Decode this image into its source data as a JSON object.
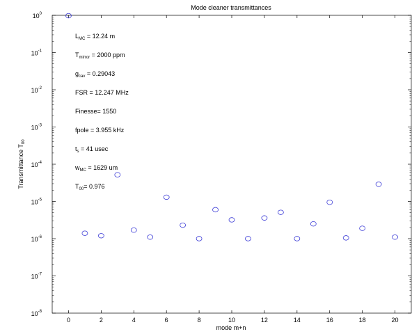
{
  "chart_data": {
    "type": "scatter",
    "title": "Mode cleaner transmittances",
    "xlabel": "mode m+n",
    "ylabel_main": "Transmittance T",
    "ylabel_sub": "00",
    "xlim": [
      -1,
      21
    ],
    "ylim": [
      1e-08,
      1
    ],
    "y_scale": "log",
    "x_ticks": [
      "0",
      "2",
      "4",
      "6",
      "8",
      "10",
      "12",
      "14",
      "16",
      "18",
      "20"
    ],
    "y_tick_exponents": [
      "-8",
      "-7",
      "-6",
      "-5",
      "-4",
      "-3",
      "-2",
      "-1",
      "0"
    ],
    "grid": false,
    "marker": "circle-open",
    "marker_color": "#3a3ad6",
    "points": [
      {
        "x": 0,
        "y": 0.976
      },
      {
        "x": 1,
        "y": 1.4e-06
      },
      {
        "x": 2,
        "y": 1.2e-06
      },
      {
        "x": 3,
        "y": 5.2e-05
      },
      {
        "x": 4,
        "y": 1.7e-06
      },
      {
        "x": 5,
        "y": 1.1e-06
      },
      {
        "x": 6,
        "y": 1.3e-05
      },
      {
        "x": 7,
        "y": 2.3e-06
      },
      {
        "x": 8,
        "y": 1e-06
      },
      {
        "x": 9,
        "y": 6e-06
      },
      {
        "x": 10,
        "y": 3.2e-06
      },
      {
        "x": 11,
        "y": 1e-06
      },
      {
        "x": 12,
        "y": 3.6e-06
      },
      {
        "x": 13,
        "y": 5.1e-06
      },
      {
        "x": 14,
        "y": 1e-06
      },
      {
        "x": 15,
        "y": 2.5e-06
      },
      {
        "x": 16,
        "y": 9.5e-06
      },
      {
        "x": 17,
        "y": 1.05e-06
      },
      {
        "x": 18,
        "y": 1.9e-06
      },
      {
        "x": 19,
        "y": 2.9e-05
      },
      {
        "x": 20,
        "y": 1.1e-06
      }
    ],
    "annotations": [
      {
        "main": "L",
        "sub": "MC",
        "value": " = 12.24 m"
      },
      {
        "main": "T",
        "sub": "mirror",
        "value": " = 2000 ppm"
      },
      {
        "main": "g",
        "sub": "cav",
        "value": "  = 0.29043"
      },
      {
        "main": "FSR",
        "sub": "",
        "value": "   = 12.247 MHz"
      },
      {
        "main": "Finesse",
        "sub": "",
        "value": "= 1550"
      },
      {
        "main": "fpole",
        "sub": "",
        "value": "  = 3.955 kHz"
      },
      {
        "main": "t",
        "sub": "s",
        "value": "  = 41 usec"
      },
      {
        "main": "w",
        "sub": "MC",
        "value": " = 1629 um"
      },
      {
        "main": "T",
        "sub": "00",
        "value": "= 0.976"
      }
    ]
  }
}
